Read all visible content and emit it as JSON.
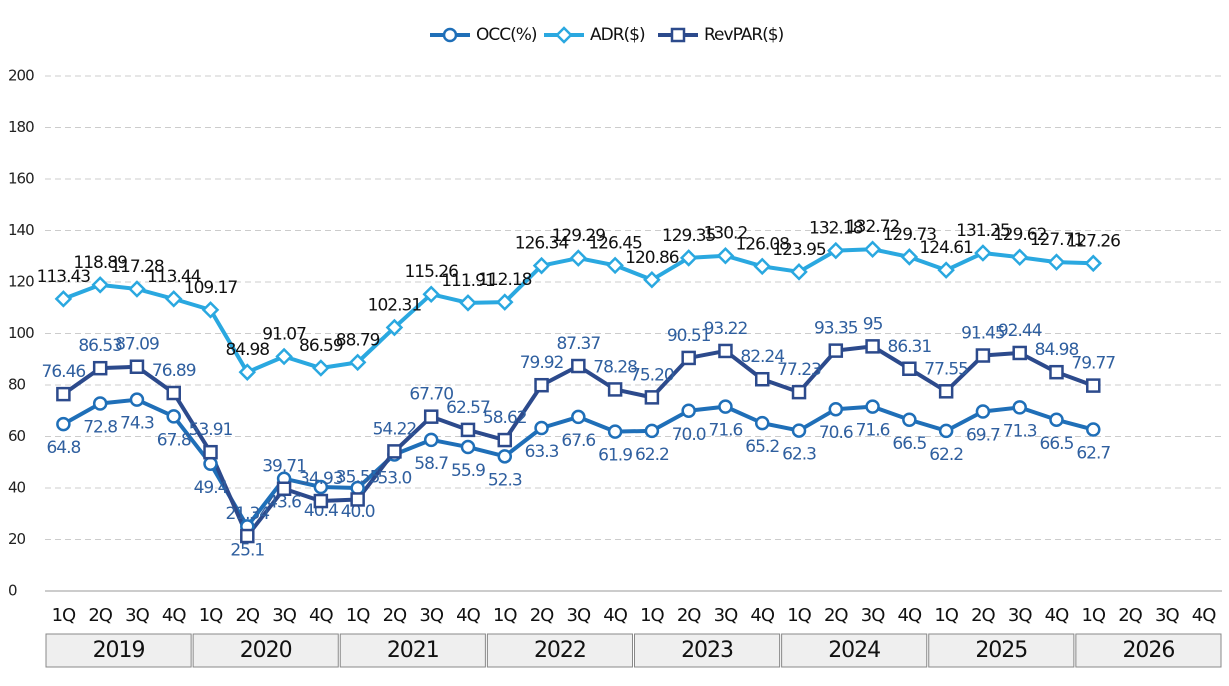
{
  "chart_data": {
    "type": "line",
    "categories": [
      "1Q",
      "2Q",
      "3Q",
      "4Q",
      "1Q",
      "2Q",
      "3Q",
      "4Q",
      "1Q",
      "2Q",
      "3Q",
      "4Q",
      "1Q",
      "2Q",
      "3Q",
      "4Q",
      "1Q",
      "2Q",
      "3Q",
      "4Q",
      "1Q",
      "2Q",
      "3Q",
      "4Q",
      "1Q",
      "2Q",
      "3Q",
      "4Q",
      "1Q",
      "2Q",
      "3Q",
      "4Q"
    ],
    "years": [
      "2019",
      "2020",
      "2021",
      "2022",
      "2023",
      "2024",
      "2025",
      "2026"
    ],
    "ylim": [
      0,
      200
    ],
    "yticks": [
      0,
      20,
      40,
      60,
      80,
      100,
      120,
      140,
      160,
      180,
      200
    ],
    "grid": true,
    "legend": "top",
    "series": [
      {
        "name": "OCC(%)",
        "color": "#1f6fb8",
        "label_color": "#2f5f9f",
        "marker": "circle",
        "label_position": "below",
        "values": [
          64.8,
          72.8,
          74.3,
          67.8,
          49.4,
          25.1,
          43.6,
          40.4,
          40.0,
          53.0,
          58.7,
          55.9,
          52.3,
          63.3,
          67.6,
          61.9,
          62.2,
          70.0,
          71.6,
          65.2,
          62.3,
          70.6,
          71.6,
          66.5,
          62.2,
          69.7,
          71.3,
          66.5,
          62.7,
          null,
          null,
          null
        ],
        "value_labels": [
          "64.8",
          "72.8",
          "74.3",
          "67.8",
          "49.4",
          "25.1",
          "43.6",
          "40.4",
          "40.0",
          "53.0",
          "58.7",
          "55.9",
          "52.3",
          "63.3",
          "67.6",
          "61.9",
          "62.2",
          "70.0",
          "71.6",
          "65.2",
          "62.3",
          "70.6",
          "71.6",
          "66.5",
          "62.2",
          "69.7",
          "71.3",
          "66.5",
          "62.7",
          null,
          null,
          null
        ]
      },
      {
        "name": "ADR($)",
        "color": "#2aa8e0",
        "label_color": "#111111",
        "marker": "diamond",
        "label_position": "above",
        "values": [
          113.43,
          118.89,
          117.28,
          113.44,
          109.17,
          84.98,
          91.07,
          86.59,
          88.79,
          102.31,
          115.26,
          111.91,
          112.18,
          126.34,
          129.29,
          126.45,
          120.86,
          129.35,
          130.2,
          126.08,
          123.95,
          132.18,
          132.72,
          129.73,
          124.61,
          131.25,
          129.62,
          127.71,
          127.26,
          null,
          null,
          null
        ]
      },
      {
        "name": "RevPAR($)",
        "color": "#2c4a8c",
        "label_color": "#2f5f9f",
        "marker": "square",
        "label_position": "above",
        "values": [
          76.46,
          86.53,
          87.09,
          76.89,
          53.91,
          21.34,
          39.71,
          34.93,
          35.55,
          54.22,
          67.7,
          62.57,
          58.62,
          79.92,
          87.37,
          78.28,
          75.2,
          90.51,
          93.22,
          82.24,
          77.23,
          93.35,
          95,
          86.31,
          77.55,
          91.45,
          92.44,
          84.98,
          79.77,
          null,
          null,
          null
        ],
        "value_labels": [
          "76.46",
          "86.53",
          "87.09",
          "76.89",
          "53.91",
          "21.34",
          "39.71",
          "34.93",
          "35.55",
          "54.22",
          "67.70",
          "62.57",
          "58.62",
          "79.92",
          "87.37",
          "78.28",
          "75.20",
          "90.51",
          "93.22",
          "82.24",
          "77.23",
          "93.35",
          "95",
          "86.31",
          "77.55",
          "91.45",
          "92.44",
          "84.98",
          "79.77",
          null,
          null,
          null
        ]
      }
    ]
  }
}
